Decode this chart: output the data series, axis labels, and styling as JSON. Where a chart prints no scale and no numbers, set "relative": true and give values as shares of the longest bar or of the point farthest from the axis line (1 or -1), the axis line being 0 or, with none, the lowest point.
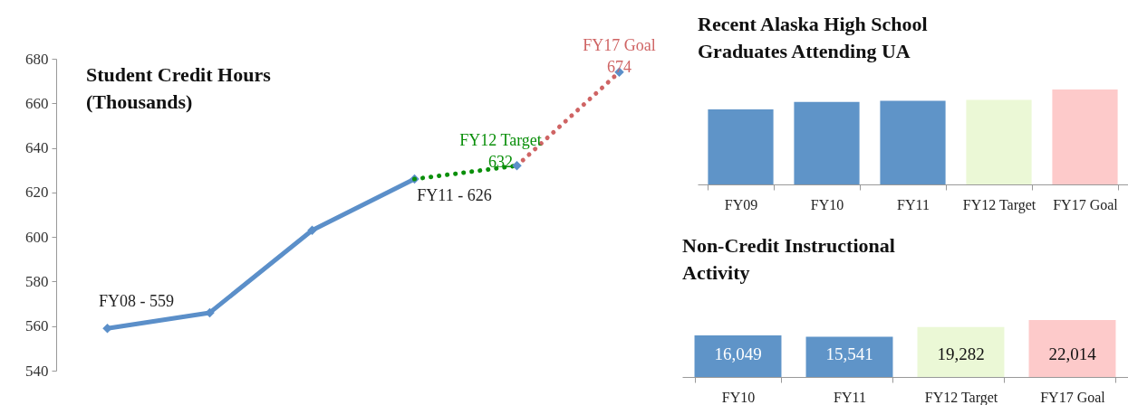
{
  "chart_data": [
    {
      "type": "line",
      "title": "Student Credit Hours\n(Thousands)",
      "categories": [
        null,
        null,
        null,
        null,
        null,
        null
      ],
      "ylim": [
        540,
        680
      ],
      "yticks": [
        540,
        560,
        580,
        600,
        620,
        640,
        660,
        680
      ],
      "series": [
        {
          "color": "#5b8fc9",
          "values": [
            559,
            566,
            603,
            626,
            null,
            null
          ],
          "marker": "diamond",
          "line_style": "solid"
        },
        {
          "color": "#0a8f0a",
          "values": [
            null,
            null,
            null,
            626,
            632,
            null
          ],
          "line_style": "dotted"
        },
        {
          "color": "#cf6464",
          "values": [
            null,
            null,
            null,
            null,
            632,
            674
          ],
          "line_style": "dotted"
        },
        {
          "type": "scatter",
          "color": "#5b8fc9",
          "marker": "diamond",
          "values": [
            null,
            null,
            null,
            null,
            632,
            674
          ]
        }
      ],
      "annotations": [
        {
          "text": "FY08 - 559",
          "y": 559
        },
        {
          "text": "FY11 - 626",
          "y": 626
        },
        {
          "text": "FY12 Target\n632",
          "y": 632
        },
        {
          "text": "FY17 Goal\n674",
          "y": 674
        }
      ]
    },
    {
      "type": "bar",
      "title": "Recent Alaska High School\nGraduates Attending UA",
      "relative": true,
      "categories": [
        "FY09",
        "FY10",
        "FY11",
        "FY12 Target",
        "FY17 Goal"
      ],
      "values": [
        0.79,
        0.87,
        0.88,
        0.89,
        1
      ],
      "colors": [
        "#5f94c8",
        "#5f94c8",
        "#5f94c8",
        "#ebf8d6",
        "#fdcaca"
      ]
    },
    {
      "type": "bar",
      "title": "Non-Credit Instructional\n Activity",
      "categories": [
        "FY10",
        "FY11",
        "FY12 Target",
        "FY17 Goal"
      ],
      "values": [
        16049,
        15541,
        19282,
        22014
      ],
      "colors": [
        "#5f94c8",
        "#5f94c8",
        "#ebf8d6",
        "#fdcaca"
      ],
      "value_labels": [
        "16,049",
        "15,541",
        "19,282",
        "22,014"
      ]
    }
  ]
}
